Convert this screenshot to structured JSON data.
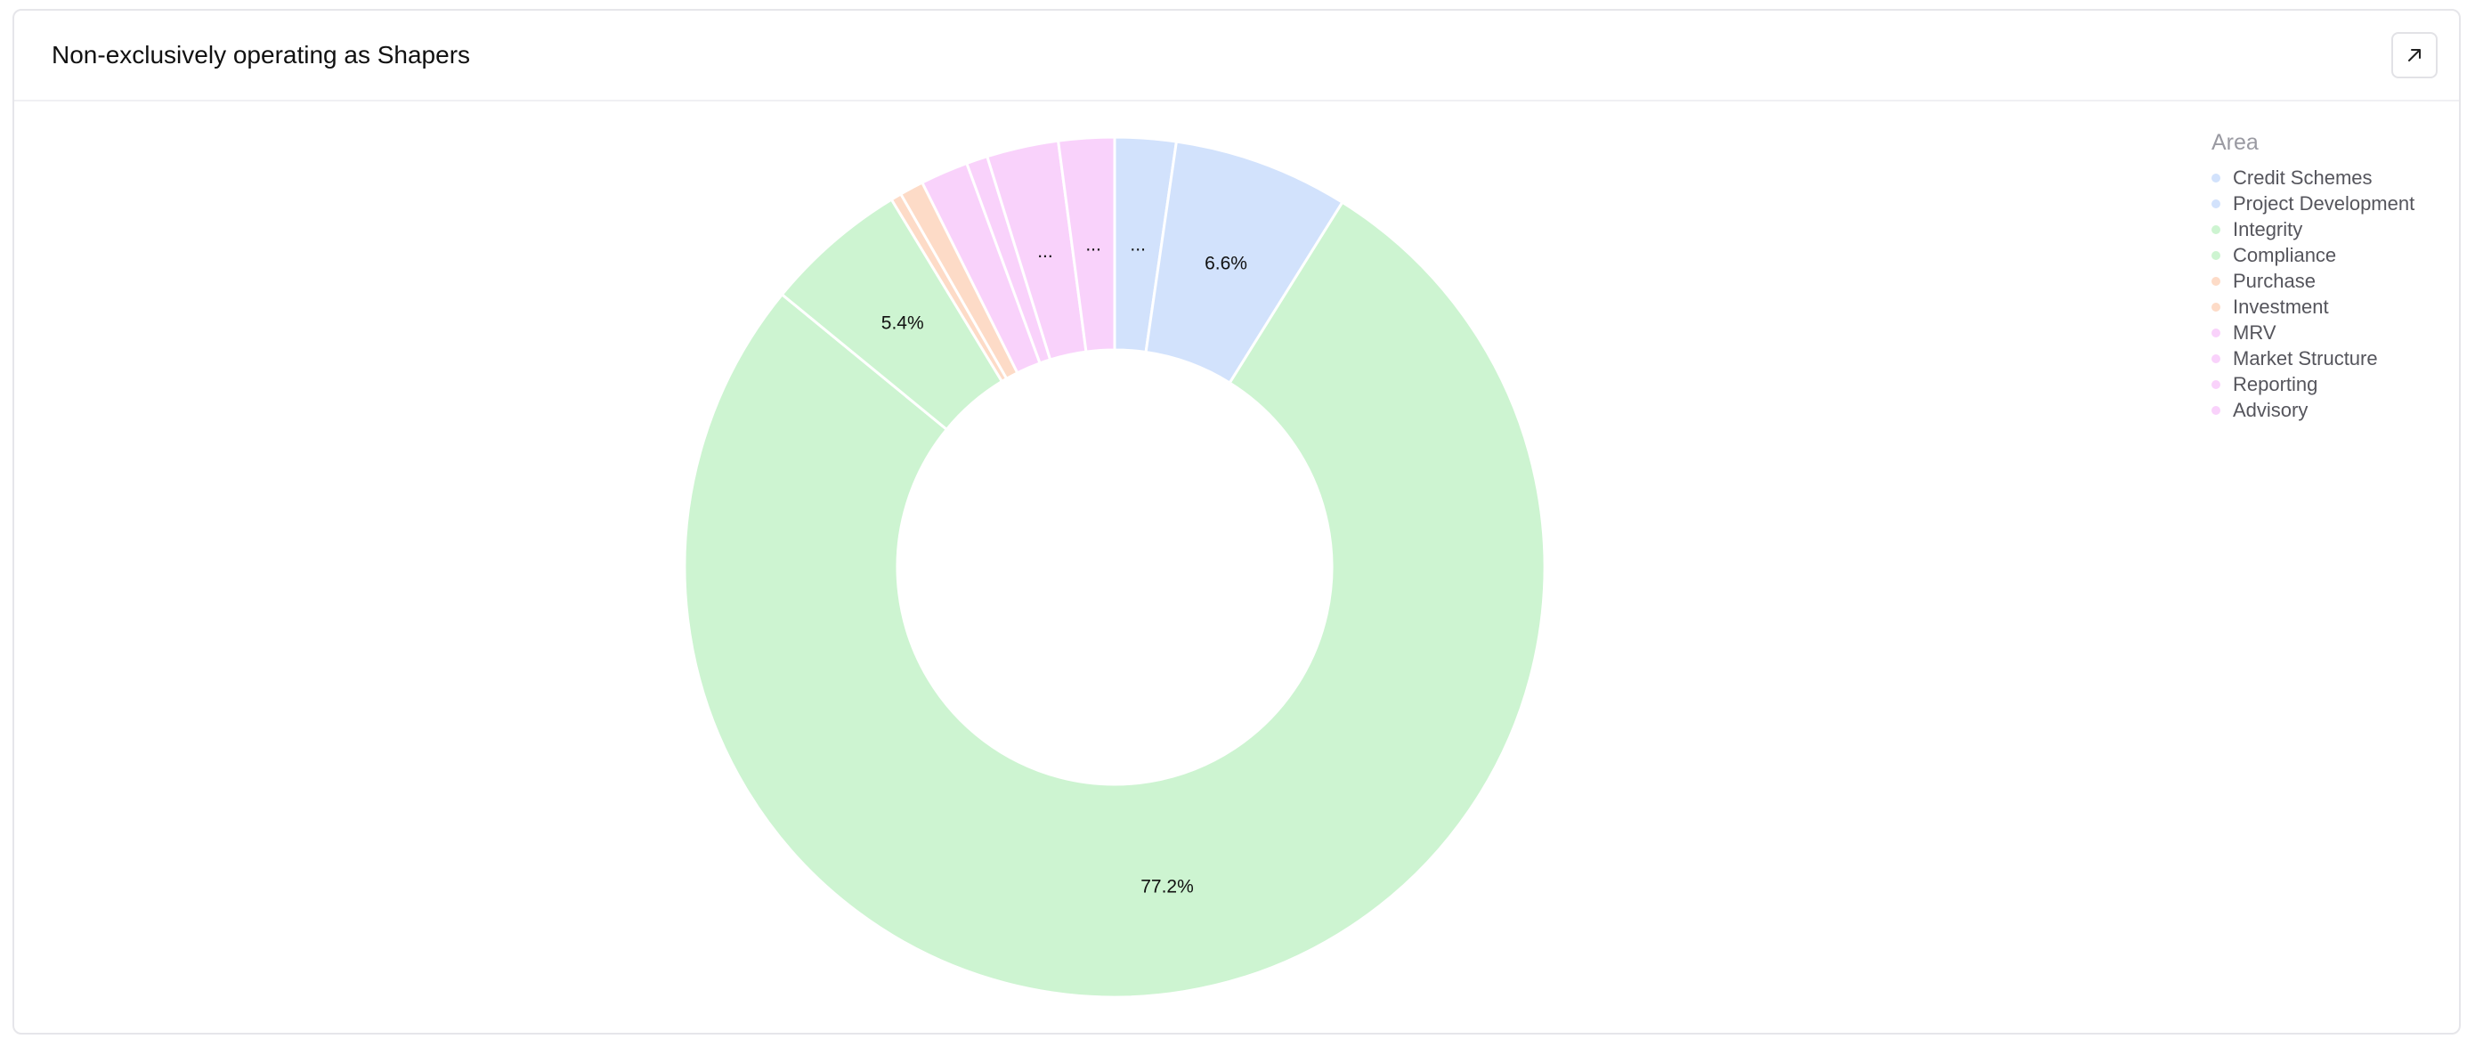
{
  "card": {
    "title": "Non-exclusively operating as Shapers",
    "expand_icon": "arrow-up-right-icon"
  },
  "legend": {
    "title": "Area",
    "items": [
      {
        "label": "Credit Schemes",
        "color": "#d2e2fc"
      },
      {
        "label": "Project Development",
        "color": "#d2e2fc"
      },
      {
        "label": "Integrity",
        "color": "#cdf4d1"
      },
      {
        "label": "Compliance",
        "color": "#cdf4d1"
      },
      {
        "label": "Purchase",
        "color": "#fddbc7"
      },
      {
        "label": "Investment",
        "color": "#fddbc7"
      },
      {
        "label": "MRV",
        "color": "#f9d2fb"
      },
      {
        "label": "Market Structure",
        "color": "#f9d2fb"
      },
      {
        "label": "Reporting",
        "color": "#f9d2fb"
      },
      {
        "label": "Advisory",
        "color": "#f9d2fb"
      }
    ]
  },
  "chart_data": {
    "type": "pie",
    "donut": true,
    "legend_title": "Area",
    "legend_position": "top-right",
    "slices": [
      {
        "name": "Credit Schemes",
        "value": 2.3,
        "color": "#d2e2fc",
        "label": "..."
      },
      {
        "name": "Project Development",
        "value": 6.6,
        "color": "#d2e2fc",
        "label": "6.6%"
      },
      {
        "name": "Integrity",
        "value": 77.2,
        "color": "#cdf4d1",
        "label": "77.2%"
      },
      {
        "name": "Compliance",
        "value": 5.4,
        "color": "#cdf4d1",
        "label": "5.4%"
      },
      {
        "name": "Purchase",
        "value": 0.4,
        "color": "#fddbc7",
        "label": ""
      },
      {
        "name": "Investment",
        "value": 0.9,
        "color": "#fddbc7",
        "label": ""
      },
      {
        "name": "MRV",
        "value": 1.8,
        "color": "#f9d2fb",
        "label": ""
      },
      {
        "name": "Market Structure",
        "value": 0.8,
        "color": "#f9d2fb",
        "label": ""
      },
      {
        "name": "Reporting",
        "value": 2.7,
        "color": "#f9d2fb",
        "label": "..."
      },
      {
        "name": "Advisory",
        "value": 2.1,
        "color": "#f9d2fb",
        "label": "..."
      }
    ]
  }
}
